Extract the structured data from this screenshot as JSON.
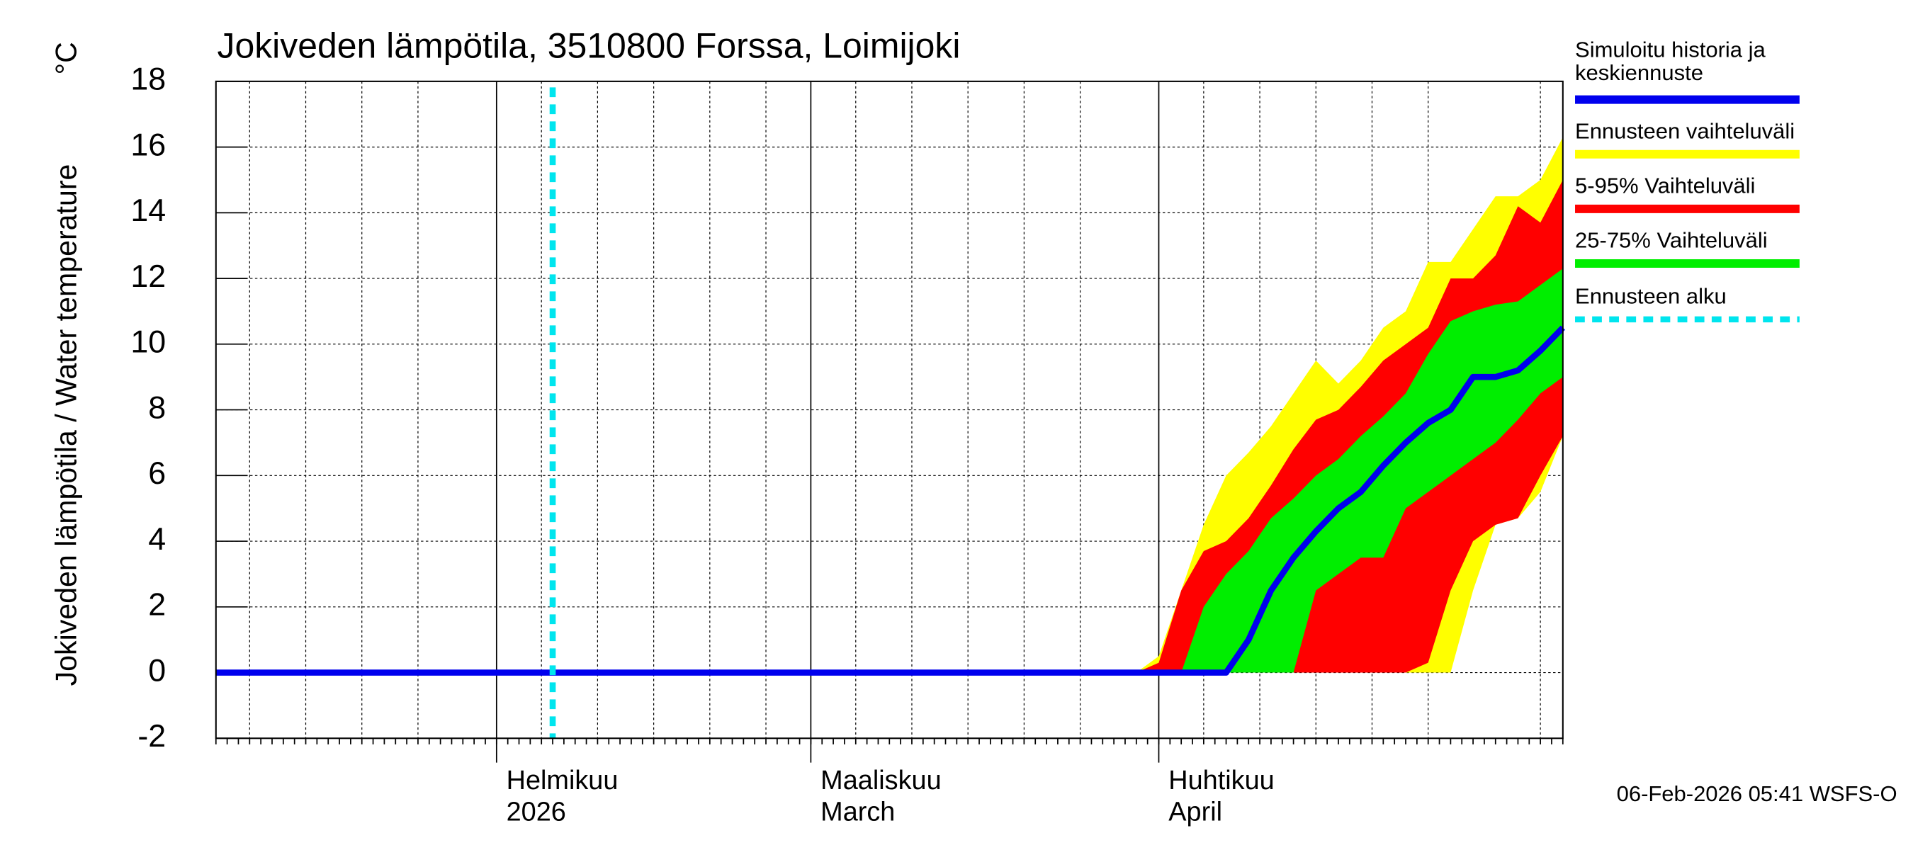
{
  "chart_data": {
    "type": "area-line",
    "title": "Jokiveden lämpötila, 3510800 Forssa, Loimijoki",
    "y_label": "Jokiveden lämpötila / Water temperature",
    "y_unit": "°C",
    "timestamp": "06-Feb-2026 05:41 WSFS-O",
    "x": [
      "2026-01-07",
      "2026-03-30",
      "2026-04-01",
      "2026-04-03",
      "2026-04-05",
      "2026-04-07",
      "2026-04-09",
      "2026-04-11",
      "2026-04-13",
      "2026-04-15",
      "2026-04-17",
      "2026-04-19",
      "2026-04-21",
      "2026-04-23",
      "2026-04-25",
      "2026-04-27",
      "2026-04-29",
      "2026-05-01",
      "2026-05-03",
      "2026-05-05",
      "2026-05-07"
    ],
    "xlim": [
      "2026-01-07",
      "2026-05-07"
    ],
    "xticks": [
      {
        "value": "2026-02-01",
        "label": "Helmikuu",
        "label2": "2026"
      },
      {
        "value": "2026-03-01",
        "label": "Maaliskuu",
        "label2": "March"
      },
      {
        "value": "2026-04-01",
        "label": "Huhtikuu",
        "label2": "April"
      }
    ],
    "ylim": [
      -2,
      18
    ],
    "yticks": [
      -2,
      0,
      2,
      4,
      6,
      8,
      10,
      12,
      14,
      16,
      18
    ],
    "grid": true,
    "series": [
      {
        "name": "Simuloitu historia ja keskiennuste",
        "color": "#0000ee",
        "values": [
          0,
          0,
          0,
          0,
          0,
          0,
          1,
          2.5,
          3.5,
          4.3,
          5,
          5.5,
          6.3,
          7,
          7.6,
          8,
          9,
          9,
          9.2,
          9.8,
          10.5
        ]
      },
      {
        "name": "Ennusteen vaihteluväli",
        "color": "#ffff00",
        "upper": [
          null,
          0,
          0.5,
          2.5,
          4.5,
          6,
          6.7,
          7.5,
          8.5,
          9.5,
          8.8,
          9.5,
          10.5,
          11,
          12.5,
          12.5,
          13.5,
          14.5,
          14.5,
          15,
          16.3
        ],
        "lower": [
          null,
          0,
          0,
          0,
          0,
          0,
          0,
          0,
          0,
          0,
          0,
          0,
          0,
          0,
          0,
          0,
          2.5,
          4.5,
          4.7,
          5.5,
          7.2
        ]
      },
      {
        "name": "5-95% Vaihteluväli",
        "color": "#ff0000",
        "upper": [
          null,
          0,
          0.3,
          2.5,
          3.7,
          4,
          4.7,
          5.7,
          6.8,
          7.7,
          8,
          8.7,
          9.5,
          10,
          10.5,
          12,
          12,
          12.7,
          14.2,
          13.7,
          15
        ],
        "lower": [
          null,
          0,
          0,
          0,
          0,
          0,
          0,
          0,
          0,
          0,
          0,
          0,
          0,
          0,
          0.3,
          2.5,
          4,
          4.5,
          4.7,
          6,
          7.2
        ]
      },
      {
        "name": "25-75% Vaihteluväli",
        "color": "#00ee00",
        "upper": [
          null,
          0,
          0,
          0,
          2,
          3,
          3.7,
          4.7,
          5.3,
          6,
          6.5,
          7.2,
          7.8,
          8.5,
          9.7,
          10.7,
          11,
          11.2,
          11.3,
          11.8,
          12.3
        ],
        "lower": [
          null,
          0,
          0,
          0,
          0,
          0,
          0,
          0,
          0,
          2.5,
          3,
          3.5,
          3.5,
          5,
          5.5,
          6,
          6.5,
          7,
          7.7,
          8.5,
          9
        ]
      }
    ],
    "forecast_start": {
      "name": "Ennusteen alku",
      "color": "#00e5ee",
      "x": "2026-02-06"
    }
  }
}
